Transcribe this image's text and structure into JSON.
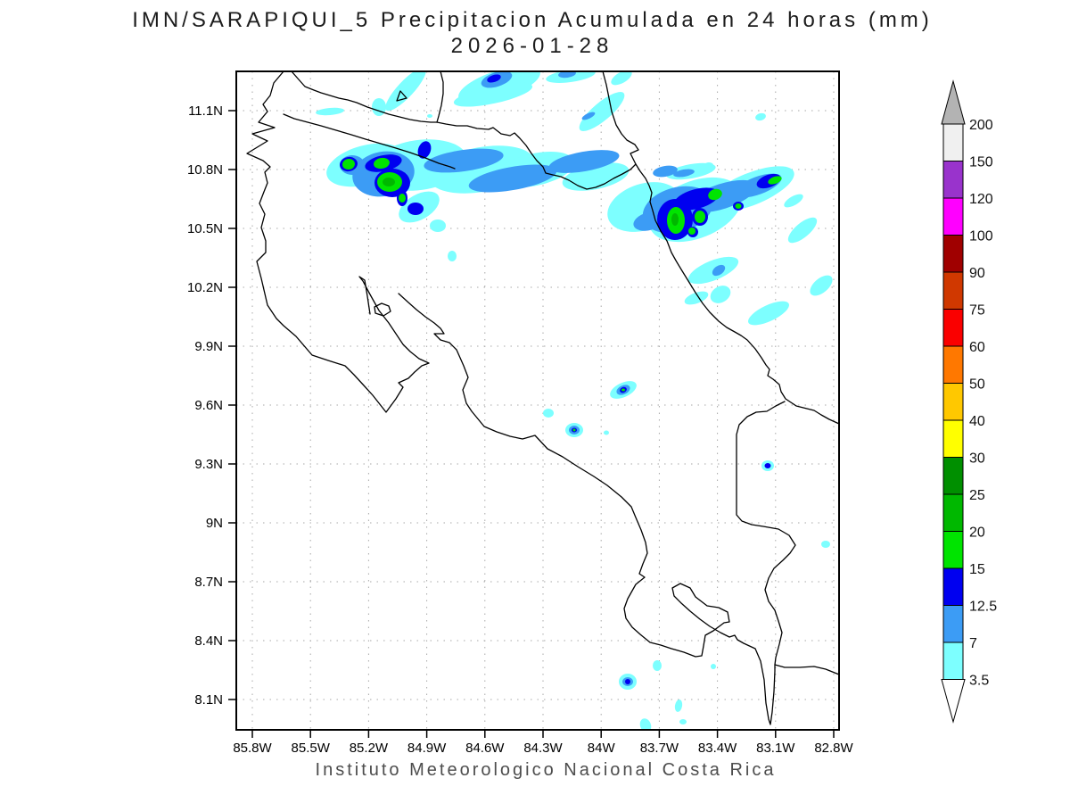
{
  "title": {
    "line1": "IMN/SARAPIQUI_5 Precipitacion Acumulada en 24 horas (mm)",
    "line2": "2026-01-28"
  },
  "footer": {
    "text": "Instituto Meteorologico Nacional Costa Rica"
  },
  "axes": {
    "lat_labels": [
      "11.1N",
      "10.8N",
      "10.5N",
      "10.2N",
      "9.9N",
      "9.6N",
      "9.3N",
      "9N",
      "8.7N",
      "8.4N",
      "8.1N"
    ],
    "lon_labels": [
      "85.8W",
      "85.5W",
      "85.2W",
      "84.9W",
      "84.6W",
      "84.3W",
      "84W",
      "83.7W",
      "83.4W",
      "83.1W",
      "82.8W"
    ]
  },
  "colorbar": {
    "levels": [
      "200",
      "150",
      "120",
      "100",
      "90",
      "75",
      "60",
      "50",
      "40",
      "30",
      "25",
      "20",
      "15",
      "12.5",
      "7",
      "3.5"
    ],
    "colors": [
      "#f0f0f0",
      "#9933cc",
      "#ff00ff",
      "#a00000",
      "#d03800",
      "#fa0000",
      "#ff7800",
      "#ffc800",
      "#ffff00",
      "#008f00",
      "#00b800",
      "#00e400",
      "#0000f0",
      "#3c9cf5",
      "#7dffff"
    ],
    "arrow_top_color": "#b3b3b3",
    "arrow_bottom_color": "#ffffff"
  },
  "chart_data": {
    "type": "heatmap",
    "title": "IMN/SARAPIQUI_5 Precipitacion Acumulada en 24 horas (mm)",
    "date": "2026-01-28",
    "region": "Costa Rica",
    "xlabel_ticks": [
      "85.8W",
      "85.5W",
      "85.2W",
      "84.9W",
      "84.6W",
      "84.3W",
      "84W",
      "83.7W",
      "83.4W",
      "83.1W",
      "82.8W"
    ],
    "ylabel_ticks": [
      "11.1N",
      "10.8N",
      "10.5N",
      "10.2N",
      "9.9N",
      "9.6N",
      "9.3N",
      "9N",
      "8.7N",
      "8.4N",
      "8.1N"
    ],
    "legend_levels_mm": [
      3.5,
      7,
      12.5,
      15,
      20,
      25,
      30,
      40,
      50,
      60,
      75,
      90,
      100,
      120,
      150,
      200
    ],
    "legend_position": "right",
    "grid": "dotted",
    "precip_regions": [
      {
        "name": "northwest-cluster",
        "approx_center": "10.78N 84.95W",
        "extent": "10.6N-11.0N, 85.35W-83.9W",
        "peak_mm": "20-25",
        "note": "elongated WSW-ENE band, cyan shield, blue core, several green maxima"
      },
      {
        "name": "northeast-border-cluster",
        "approx_center": "10.55N 83.45W",
        "extent": "10.3N-10.8N, 83.85W-82.9W",
        "peak_mm": "20-25",
        "note": "diagonal NE-SW band near Caribbean coast with green maxima"
      },
      {
        "name": "top-edge-streaks",
        "approx_center": "11.25N 84.8W",
        "extent": "11.1N-11.3N, 85.15W-83.9W",
        "peak_mm": "12.5-15",
        "note": "thin diagonal cyan streaks clipped by frame top"
      },
      {
        "name": "isolated-cell-1",
        "approx_center": "9.66N 83.84W",
        "peak_mm": "15-20"
      },
      {
        "name": "isolated-cell-2",
        "approx_center": "9.46N 84.10W",
        "peak_mm": "15-20"
      },
      {
        "name": "isolated-cell-3",
        "approx_center": "9.28N 83.08W",
        "peak_mm": "12.5-15"
      },
      {
        "name": "isolated-cell-4",
        "approx_center": "8.17N 83.82W",
        "peak_mm": "12.5-15"
      },
      {
        "name": "minor-specks",
        "peak_mm": "3.5-7",
        "note": "scattered small cyan specks over southern Pacific slope and southeast"
      }
    ]
  }
}
